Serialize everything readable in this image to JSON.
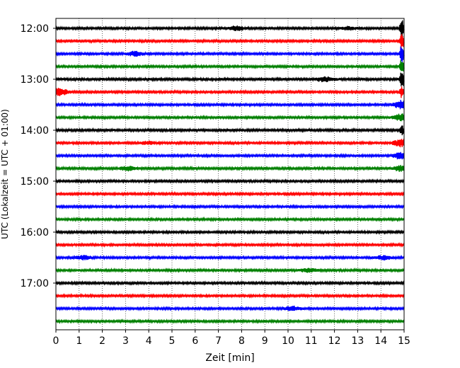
{
  "chart_data": {
    "type": "line",
    "title": "",
    "xlabel": "Zeit  [min]",
    "ylabel": "UTC (Lokalzeit = UTC + 01:00)",
    "xlim": [
      0,
      15
    ],
    "x_ticks": [
      "0",
      "1",
      "2",
      "3",
      "4",
      "5",
      "6",
      "7",
      "8",
      "9",
      "10",
      "11",
      "12",
      "13",
      "14",
      "15"
    ],
    "y_ticks": [
      "12:00",
      "13:00",
      "14:00",
      "15:00",
      "16:00",
      "17:00"
    ],
    "grid": "vertical dotted lines at each minute",
    "trace_interval_minutes": 15,
    "start": "12:00",
    "end": "17:45",
    "color_cycle": [
      "#000000",
      "#ff0000",
      "#0000ff",
      "#008000"
    ],
    "traces": [
      {
        "start": "12:00",
        "color": "#000000",
        "amplitude": 1.0,
        "events": [
          {
            "t": 7.8,
            "amp": 3
          },
          {
            "t": 12.6,
            "amp": 2
          },
          {
            "t": 14.9,
            "amp": 14
          }
        ]
      },
      {
        "start": "12:15",
        "color": "#ff0000",
        "amplitude": 1.0,
        "events": [
          {
            "t": 14.9,
            "amp": 12
          }
        ]
      },
      {
        "start": "12:30",
        "color": "#0000ff",
        "amplitude": 1.0,
        "events": [
          {
            "t": 3.4,
            "amp": 3
          },
          {
            "t": 14.9,
            "amp": 14
          }
        ]
      },
      {
        "start": "12:45",
        "color": "#008000",
        "amplitude": 1.0,
        "events": [
          {
            "t": 14.9,
            "amp": 10
          }
        ]
      },
      {
        "start": "13:00",
        "color": "#000000",
        "amplitude": 1.2,
        "events": [
          {
            "t": 11.6,
            "amp": 3
          },
          {
            "t": 14.9,
            "amp": 14
          }
        ]
      },
      {
        "start": "13:15",
        "color": "#ff0000",
        "amplitude": 1.0,
        "events": [
          {
            "t": 0.15,
            "amp": 5
          },
          {
            "t": 14.9,
            "amp": 8
          }
        ]
      },
      {
        "start": "13:30",
        "color": "#0000ff",
        "amplitude": 1.0,
        "events": [
          {
            "t": 14.9,
            "amp": 6
          }
        ]
      },
      {
        "start": "13:45",
        "color": "#008000",
        "amplitude": 1.0,
        "events": [
          {
            "t": 14.9,
            "amp": 5
          }
        ]
      },
      {
        "start": "14:00",
        "color": "#000000",
        "amplitude": 1.1,
        "events": [
          {
            "t": 14.9,
            "amp": 7
          }
        ]
      },
      {
        "start": "14:15",
        "color": "#ff0000",
        "amplitude": 1.0,
        "events": [
          {
            "t": 4.0,
            "amp": 2
          },
          {
            "t": 14.9,
            "amp": 5
          }
        ]
      },
      {
        "start": "14:30",
        "color": "#0000ff",
        "amplitude": 1.0,
        "events": [
          {
            "t": 14.9,
            "amp": 5
          }
        ]
      },
      {
        "start": "14:45",
        "color": "#008000",
        "amplitude": 1.1,
        "events": [
          {
            "t": 3.1,
            "amp": 2.5
          },
          {
            "t": 14.9,
            "amp": 4
          }
        ]
      },
      {
        "start": "15:00",
        "color": "#000000",
        "amplitude": 1.0,
        "events": []
      },
      {
        "start": "15:15",
        "color": "#ff0000",
        "amplitude": 1.0,
        "events": []
      },
      {
        "start": "15:30",
        "color": "#0000ff",
        "amplitude": 1.0,
        "events": []
      },
      {
        "start": "15:45",
        "color": "#008000",
        "amplitude": 1.0,
        "events": []
      },
      {
        "start": "16:00",
        "color": "#000000",
        "amplitude": 1.0,
        "events": []
      },
      {
        "start": "16:15",
        "color": "#ff0000",
        "amplitude": 1.0,
        "events": []
      },
      {
        "start": "16:30",
        "color": "#0000ff",
        "amplitude": 1.0,
        "events": [
          {
            "t": 1.2,
            "amp": 2.5
          },
          {
            "t": 14.1,
            "amp": 2.5
          }
        ]
      },
      {
        "start": "16:45",
        "color": "#008000",
        "amplitude": 1.0,
        "events": [
          {
            "t": 10.9,
            "amp": 2.5
          }
        ]
      },
      {
        "start": "17:00",
        "color": "#000000",
        "amplitude": 1.0,
        "events": []
      },
      {
        "start": "17:15",
        "color": "#ff0000",
        "amplitude": 1.0,
        "events": []
      },
      {
        "start": "17:30",
        "color": "#0000ff",
        "amplitude": 1.0,
        "events": [
          {
            "t": 10.2,
            "amp": 2.5
          }
        ]
      },
      {
        "start": "17:45",
        "color": "#008000",
        "amplitude": 1.0,
        "events": []
      }
    ]
  }
}
